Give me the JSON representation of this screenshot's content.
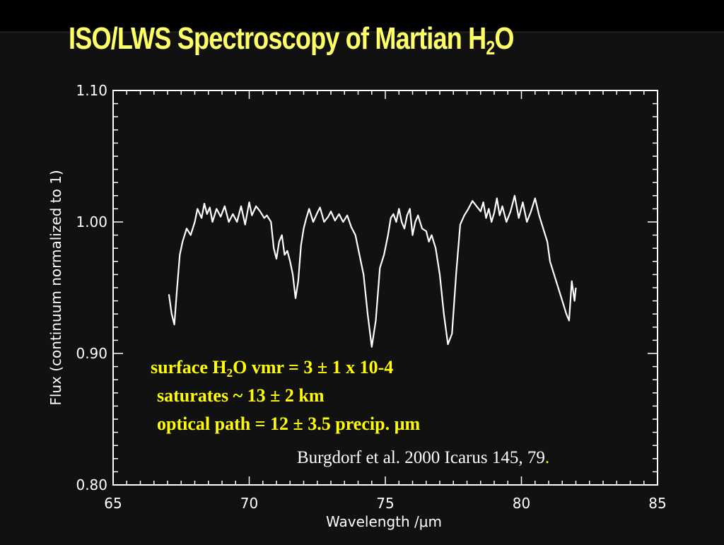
{
  "slide": {
    "title_main": "ISO/LWS Spectroscopy of Martian H",
    "title_sub": "2",
    "title_end": "O",
    "annotations": {
      "line1_pre": "surface H",
      "line1_sub": "2",
      "line1_post": "O vmr = 3 ± 1 x 10-4",
      "line2": "saturates ~ 13 ± 2 km",
      "line3": "optical path = 12 ± 3.5 precip. µm"
    },
    "citation": "Burgdorf et al. 2000 Icarus 145, 79",
    "citation_end": "."
  },
  "colors": {
    "background": "#000000",
    "title": "#ffff66",
    "annotation": "#ffff00",
    "plot": "#ffffff"
  },
  "chart_data": {
    "type": "line",
    "xlabel": "Wavelength /μm",
    "ylabel": "Flux (continuum normalized to 1)",
    "xlim": [
      65,
      85
    ],
    "ylim": [
      0.8,
      1.1
    ],
    "x_ticks": [
      65,
      70,
      75,
      80,
      85
    ],
    "x_tick_labels": [
      "65",
      "70",
      "75",
      "80",
      "85"
    ],
    "y_ticks": [
      0.8,
      0.9,
      1.0,
      1.1
    ],
    "y_tick_labels": [
      "0.80",
      "0.90",
      "1.00",
      "1.10"
    ],
    "grid": false,
    "series": [
      {
        "x": [
          67.05,
          67.15,
          67.25,
          67.35,
          67.45,
          67.55,
          67.7,
          67.85,
          68.0,
          68.1,
          68.25,
          68.35,
          68.45,
          68.55,
          68.65,
          68.8,
          68.95,
          69.1,
          69.25,
          69.4,
          69.55,
          69.7,
          69.85,
          70.0,
          70.1,
          70.25,
          70.4,
          70.55,
          70.65,
          70.8,
          70.9,
          71.0,
          71.1,
          71.2,
          71.3,
          71.4,
          71.5,
          71.6,
          71.7,
          71.8,
          71.9,
          72.0,
          72.1,
          72.2,
          72.35,
          72.5,
          72.6,
          72.75,
          72.9,
          73.0,
          73.15,
          73.3,
          73.45,
          73.6,
          73.75,
          73.9,
          74.05,
          74.2,
          74.35,
          74.5,
          74.65,
          74.8,
          74.95,
          75.1,
          75.2,
          75.3,
          75.4,
          75.5,
          75.6,
          75.7,
          75.8,
          75.9,
          76.0,
          76.1,
          76.2,
          76.35,
          76.5,
          76.6,
          76.7,
          76.85,
          77.0,
          77.15,
          77.3,
          77.45,
          77.6,
          77.75,
          77.9,
          78.05,
          78.2,
          78.35,
          78.5,
          78.6,
          78.7,
          78.8,
          78.9,
          79.0,
          79.1,
          79.2,
          79.3,
          79.45,
          79.6,
          79.75,
          79.9,
          80.05,
          80.2,
          80.35,
          80.5,
          80.65,
          80.8,
          80.95,
          81.05,
          81.2,
          81.35,
          81.5,
          81.65,
          81.75,
          81.85,
          81.95,
          82.0
        ],
        "y": [
          0.945,
          0.93,
          0.922,
          0.95,
          0.975,
          0.985,
          0.995,
          0.99,
          1.0,
          1.01,
          1.003,
          1.014,
          1.006,
          1.011,
          1.0,
          1.01,
          1.004,
          1.012,
          1.0,
          1.006,
          1.0,
          1.012,
          0.998,
          1.015,
          1.005,
          1.012,
          1.008,
          1.003,
          1.005,
          1.0,
          0.98,
          0.972,
          0.985,
          0.99,
          0.975,
          0.978,
          0.97,
          0.96,
          0.942,
          0.955,
          0.982,
          0.995,
          1.003,
          1.01,
          1.0,
          1.007,
          1.011,
          1.0,
          1.004,
          1.008,
          1.001,
          1.006,
          1.0,
          1.005,
          0.996,
          0.99,
          0.975,
          0.96,
          0.93,
          0.905,
          0.925,
          0.965,
          0.975,
          0.99,
          1.003,
          1.006,
          1.0,
          1.01,
          1.0,
          0.995,
          1.005,
          1.01,
          0.99,
          1.0,
          1.005,
          0.995,
          0.993,
          0.985,
          0.99,
          0.98,
          0.96,
          0.93,
          0.907,
          0.915,
          0.96,
          0.998,
          1.005,
          1.01,
          1.016,
          1.012,
          1.008,
          1.015,
          1.003,
          1.01,
          1.0,
          1.007,
          1.018,
          1.005,
          1.012,
          1.0,
          1.008,
          1.02,
          1.003,
          1.015,
          1.0,
          1.008,
          1.018,
          1.005,
          0.995,
          0.985,
          0.97,
          0.96,
          0.95,
          0.94,
          0.93,
          0.925,
          0.955,
          0.94,
          0.95
        ]
      }
    ]
  }
}
